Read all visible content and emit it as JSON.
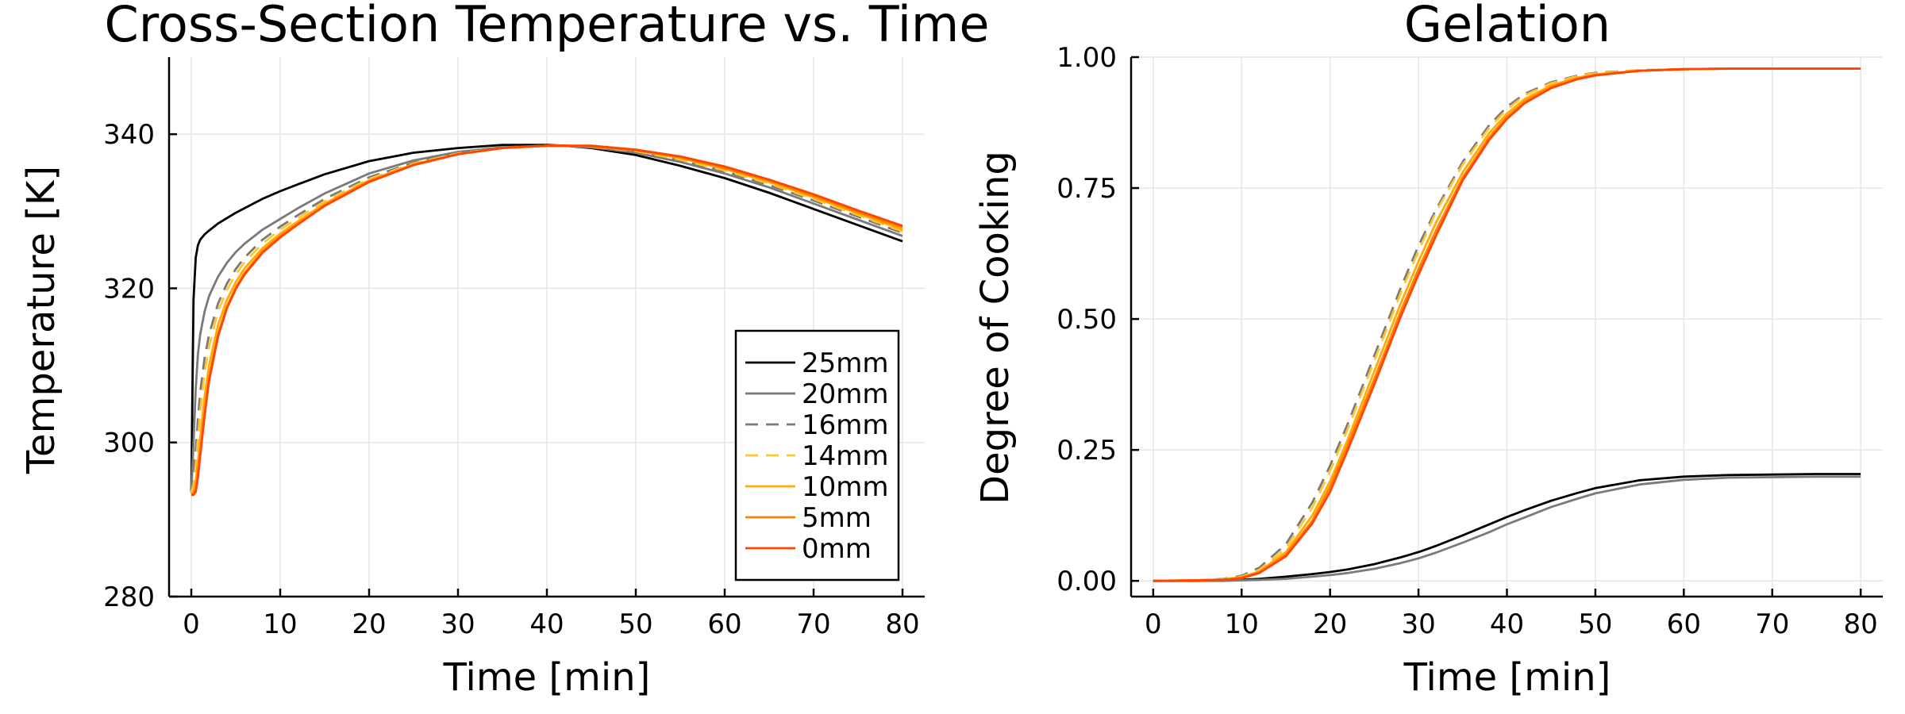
{
  "chart_data": [
    {
      "type": "line",
      "title": "Cross-Section Temperature vs. Time",
      "xlabel": "Time [min]",
      "ylabel": "Temperature [K]",
      "xlim": [
        -2.5,
        82.5
      ],
      "ylim": [
        280,
        350
      ],
      "xticks": [
        0,
        10,
        20,
        30,
        40,
        50,
        60,
        70,
        80
      ],
      "yticks": [
        280,
        300,
        320,
        340
      ],
      "grid": true,
      "legend_position": "bottom-right",
      "x": [
        0,
        0.25,
        0.5,
        0.75,
        1,
        1.5,
        2,
        3,
        4,
        5,
        6,
        8,
        10,
        12,
        15,
        20,
        25,
        30,
        35,
        40,
        42,
        45,
        50,
        55,
        60,
        65,
        70,
        75,
        80
      ],
      "series": [
        {
          "name": "25mm",
          "color": "#000000",
          "dash": "solid",
          "values": [
            293.5,
            318.5,
            324.0,
            325.6,
            326.3,
            327.0,
            327.5,
            328.4,
            329.1,
            329.8,
            330.4,
            331.6,
            332.6,
            333.5,
            334.8,
            336.5,
            337.6,
            338.2,
            338.6,
            338.6,
            338.5,
            338.2,
            337.3,
            335.9,
            334.3,
            332.4,
            330.3,
            328.2,
            326.1
          ]
        },
        {
          "name": "20mm",
          "color": "#7a7a7a",
          "dash": "solid",
          "values": [
            293.5,
            300.0,
            307.0,
            311.5,
            314.0,
            317.0,
            319.0,
            321.5,
            323.3,
            324.7,
            325.8,
            327.6,
            329.0,
            330.4,
            332.3,
            334.9,
            336.6,
            337.7,
            338.3,
            338.5,
            338.5,
            338.3,
            337.6,
            336.4,
            334.9,
            333.1,
            331.0,
            328.9,
            326.8
          ]
        },
        {
          "name": "16mm",
          "color": "#7a7a7a",
          "dash": "dashed",
          "values": [
            293.5,
            295.5,
            299.0,
            303.0,
            306.5,
            311.0,
            314.0,
            318.0,
            320.6,
            322.5,
            324.0,
            326.3,
            328.0,
            329.5,
            331.6,
            334.4,
            336.3,
            337.6,
            338.3,
            338.5,
            338.5,
            338.3,
            337.7,
            336.6,
            335.2,
            333.4,
            331.4,
            329.3,
            327.2
          ]
        },
        {
          "name": "14mm",
          "color": "#ffc532",
          "dash": "dashed",
          "values": [
            293.5,
            294.5,
            297.0,
            300.5,
            304.0,
            309.0,
            312.5,
            317.0,
            319.8,
            321.8,
            323.4,
            325.8,
            327.6,
            329.1,
            331.3,
            334.2,
            336.2,
            337.5,
            338.2,
            338.5,
            338.5,
            338.4,
            337.8,
            336.7,
            335.3,
            333.6,
            331.6,
            329.5,
            327.4
          ]
        },
        {
          "name": "10mm",
          "color": "#ffab00",
          "dash": "solid",
          "values": [
            293.3,
            293.6,
            295.0,
            297.5,
            300.5,
            306.0,
            310.0,
            315.2,
            318.5,
            320.8,
            322.6,
            325.2,
            327.1,
            328.7,
            331.0,
            334.0,
            336.1,
            337.4,
            338.2,
            338.5,
            338.5,
            338.4,
            337.9,
            336.9,
            335.5,
            333.8,
            331.8,
            329.7,
            327.6
          ]
        },
        {
          "name": "5mm",
          "color": "#ff8000",
          "dash": "solid",
          "values": [
            293.2,
            293.3,
            294.0,
            296.0,
            298.8,
            304.0,
            308.4,
            314.0,
            317.6,
            320.1,
            322.0,
            324.8,
            326.8,
            328.4,
            330.8,
            333.9,
            336.0,
            337.4,
            338.2,
            338.5,
            338.5,
            338.4,
            337.9,
            337.0,
            335.6,
            334.0,
            332.0,
            329.9,
            327.9
          ]
        },
        {
          "name": "0mm",
          "color": "#ff4500",
          "dash": "solid",
          "values": [
            293.2,
            293.2,
            293.6,
            295.5,
            298.2,
            303.5,
            308.0,
            313.7,
            317.4,
            319.9,
            321.8,
            324.6,
            326.6,
            328.3,
            330.7,
            333.8,
            336.0,
            337.4,
            338.2,
            338.5,
            338.5,
            338.5,
            338.0,
            337.1,
            335.8,
            334.1,
            332.2,
            330.1,
            328.1
          ]
        }
      ]
    },
    {
      "type": "line",
      "title": "Gelation",
      "xlabel": "Time [min]",
      "ylabel": "Degree of Cooking",
      "xlim": [
        -2.5,
        82.5
      ],
      "ylim": [
        -0.03,
        1.0
      ],
      "xticks": [
        0,
        10,
        20,
        30,
        40,
        50,
        60,
        70,
        80
      ],
      "yticks": [
        "0.00",
        "0.25",
        "0.50",
        "0.75",
        "1.00"
      ],
      "grid": true,
      "x": [
        0,
        5,
        8,
        10,
        12,
        15,
        18,
        20,
        22,
        25,
        28,
        30,
        32,
        35,
        38,
        40,
        42,
        45,
        48,
        50,
        55,
        60,
        65,
        70,
        75,
        80
      ],
      "series": [
        {
          "name": "25mm",
          "color": "#000000",
          "dash": "solid",
          "values": [
            0,
            0,
            0.001,
            0.002,
            0.004,
            0.008,
            0.013,
            0.017,
            0.022,
            0.032,
            0.045,
            0.055,
            0.067,
            0.087,
            0.108,
            0.122,
            0.135,
            0.153,
            0.168,
            0.177,
            0.192,
            0.199,
            0.202,
            0.203,
            0.204,
            0.204
          ]
        },
        {
          "name": "20mm",
          "color": "#7a7a7a",
          "dash": "solid",
          "values": [
            0,
            0,
            0,
            0.001,
            0.002,
            0.004,
            0.008,
            0.011,
            0.015,
            0.023,
            0.034,
            0.043,
            0.054,
            0.073,
            0.093,
            0.108,
            0.121,
            0.141,
            0.157,
            0.167,
            0.184,
            0.193,
            0.197,
            0.198,
            0.199,
            0.199
          ]
        },
        {
          "name": "16mm",
          "color": "#7a7a7a",
          "dash": "dashed",
          "values": [
            0,
            0.001,
            0.004,
            0.01,
            0.025,
            0.07,
            0.15,
            0.22,
            0.3,
            0.43,
            0.56,
            0.64,
            0.71,
            0.8,
            0.87,
            0.905,
            0.93,
            0.952,
            0.965,
            0.97,
            0.975,
            0.977,
            0.978,
            0.978,
            0.978,
            0.978
          ]
        },
        {
          "name": "14mm",
          "color": "#ffc532",
          "dash": "dashed",
          "values": [
            0,
            0.001,
            0.003,
            0.008,
            0.021,
            0.062,
            0.14,
            0.21,
            0.29,
            0.42,
            0.55,
            0.63,
            0.705,
            0.795,
            0.865,
            0.9,
            0.927,
            0.95,
            0.964,
            0.969,
            0.975,
            0.977,
            0.978,
            0.978,
            0.978,
            0.978
          ]
        },
        {
          "name": "10mm",
          "color": "#ffab00",
          "dash": "solid",
          "values": [
            0,
            0.001,
            0.003,
            0.007,
            0.018,
            0.055,
            0.125,
            0.19,
            0.27,
            0.4,
            0.53,
            0.61,
            0.685,
            0.78,
            0.855,
            0.892,
            0.92,
            0.946,
            0.961,
            0.967,
            0.974,
            0.977,
            0.978,
            0.978,
            0.978,
            0.978
          ]
        },
        {
          "name": "5mm",
          "color": "#ff8000",
          "dash": "solid",
          "values": [
            0,
            0.001,
            0.002,
            0.006,
            0.016,
            0.05,
            0.115,
            0.18,
            0.26,
            0.385,
            0.515,
            0.595,
            0.67,
            0.77,
            0.847,
            0.886,
            0.915,
            0.943,
            0.959,
            0.966,
            0.974,
            0.977,
            0.978,
            0.978,
            0.978,
            0.978
          ]
        },
        {
          "name": "0mm",
          "color": "#ff4500",
          "dash": "solid",
          "values": [
            0,
            0.001,
            0.002,
            0.005,
            0.015,
            0.047,
            0.11,
            0.17,
            0.25,
            0.375,
            0.505,
            0.585,
            0.66,
            0.765,
            0.842,
            0.882,
            0.912,
            0.941,
            0.958,
            0.965,
            0.974,
            0.977,
            0.978,
            0.978,
            0.978,
            0.978
          ]
        }
      ]
    }
  ]
}
